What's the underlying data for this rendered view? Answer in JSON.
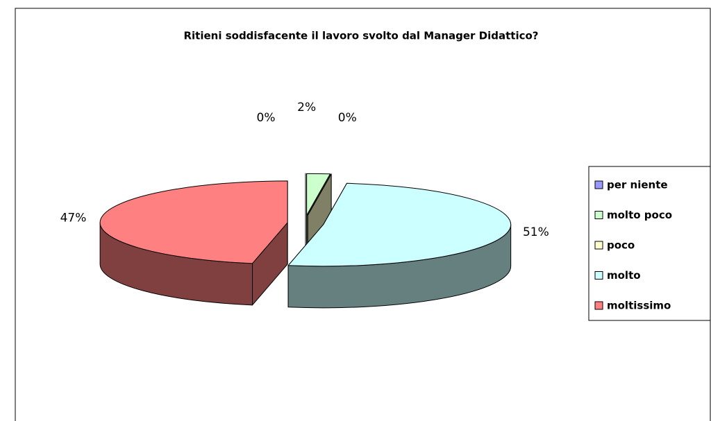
{
  "chart_data": {
    "type": "pie",
    "title": "Ritieni soddisfacente il lavoro svolto dal Manager Didattico?",
    "categories": [
      "per niente",
      "molto poco",
      "poco",
      "molto",
      "moltissimo"
    ],
    "values": [
      0,
      2,
      0,
      51,
      47
    ],
    "value_labels": [
      "0%",
      "2%",
      "0%",
      "51%",
      "47%"
    ],
    "colors": [
      "#9999ff",
      "#ccffcc",
      "#ffffcc",
      "#ccffff",
      "#ff8080"
    ],
    "legend": "right"
  }
}
